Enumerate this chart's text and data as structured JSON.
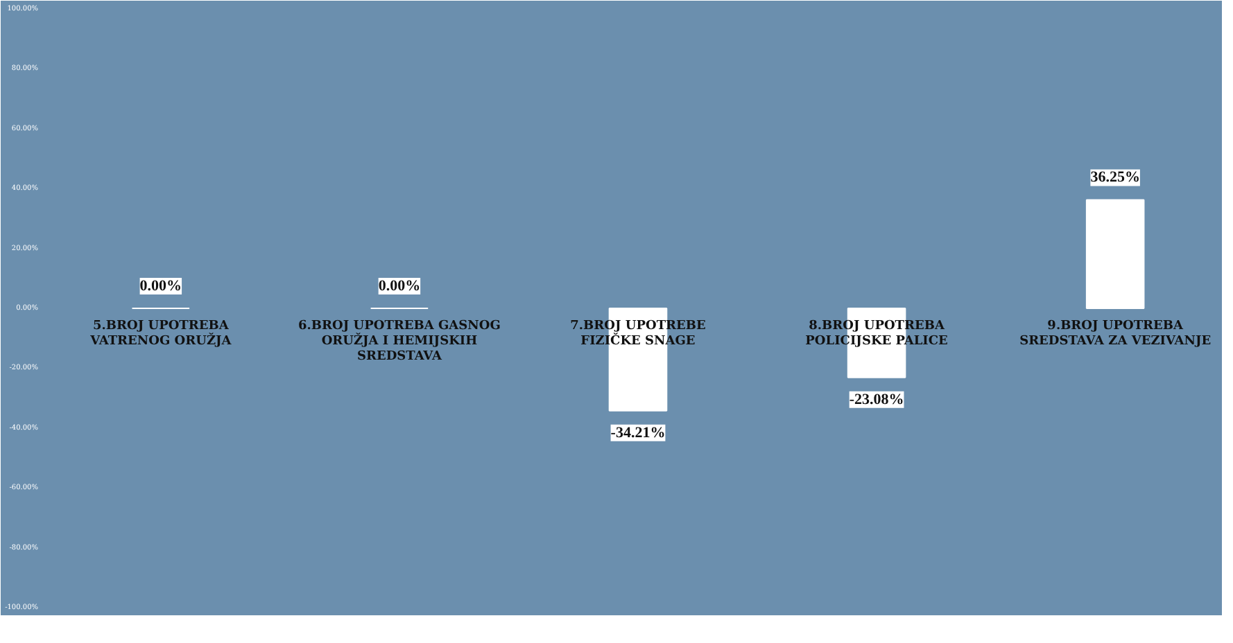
{
  "chart_data": {
    "type": "bar",
    "categories": [
      "5.BROJ UPOTREBA VATRENOG ORUŽJA",
      "6.BROJ UPOTREBA GASNOG ORUŽJA I HEMIJSKIH SREDSTAVA",
      "7.BROJ UPOTREBE FIZIČKE SNAGE",
      "8.BROJ UPOTREBA POLICIJSKE PALICE",
      "9.BROJ UPOTREBA SREDSTAVA ZA VEZIVANJE"
    ],
    "values": [
      0.0,
      0.0,
      -34.21,
      -23.08,
      36.25
    ],
    "value_labels": [
      "0.00%",
      "0.00%",
      "-34.21%",
      "-23.08%",
      "36.25%"
    ],
    "color": "#ffffff",
    "ylim": [
      -100,
      100
    ],
    "yticks": [
      {
        "value": -100,
        "label": "-100.00%"
      },
      {
        "value": -80,
        "label": "-80.00%"
      },
      {
        "value": -60,
        "label": "-60.00%"
      },
      {
        "value": -40,
        "label": "-40.00%"
      },
      {
        "value": -20,
        "label": "-20.00%"
      },
      {
        "value": 0,
        "label": "0.00%"
      },
      {
        "value": 20,
        "label": "20.00%"
      },
      {
        "value": 40,
        "label": "40.00%"
      },
      {
        "value": 60,
        "label": "60.00%"
      },
      {
        "value": 80,
        "label": "80.00%"
      },
      {
        "value": 100,
        "label": "100.00%"
      }
    ],
    "grid": false
  }
}
